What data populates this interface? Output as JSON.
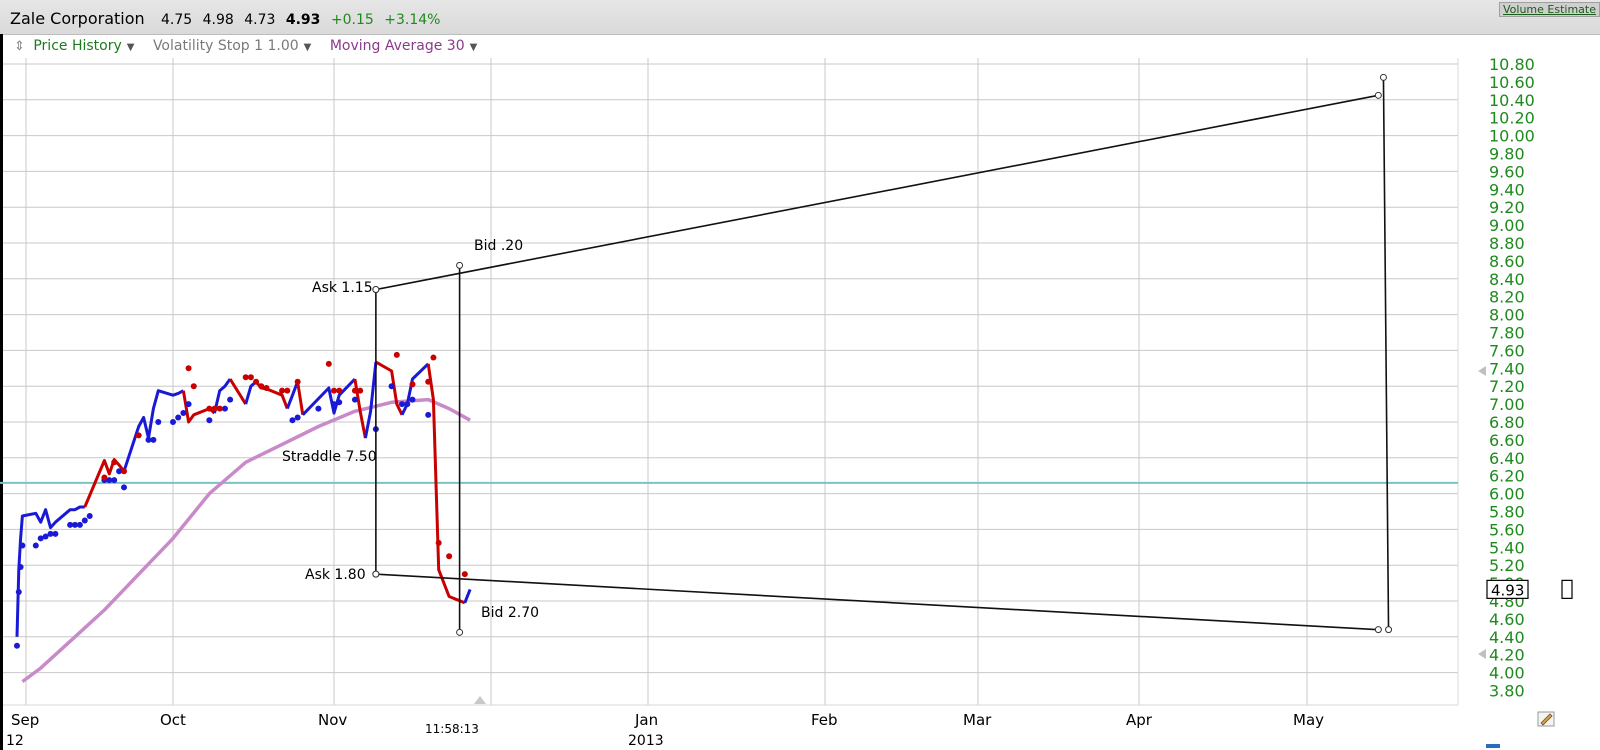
{
  "header": {
    "company": "Zale Corporation",
    "open": "4.75",
    "high": "4.98",
    "low": "4.73",
    "last": "4.93",
    "change": "+0.15",
    "change_pct": "+3.14%",
    "volume_link": "Volume Estimate"
  },
  "legend": {
    "drag_icon": "drag-handle-icon",
    "items": [
      {
        "label": "Price History",
        "color": "#1e7a1e"
      },
      {
        "label": "Volatility Stop 1 1.00",
        "color": "#7a7a7a"
      },
      {
        "label": "Moving Average 30",
        "color": "#8a3a8a"
      }
    ]
  },
  "price_marker": "4.93",
  "crosshair_time": "11:58:13",
  "colors": {
    "up": "#1a1ad6",
    "down": "#c80000",
    "moving_average": "#c98ac9",
    "reference_line": "#7ac3c3",
    "price_axis": "#1e8a1e",
    "grid": "#c8c8c8"
  },
  "chart_data": {
    "type": "line",
    "x_axis": {
      "tick_labels": [
        "Sep",
        "Oct",
        "Nov",
        "Jan",
        "Feb",
        "Mar",
        "Apr",
        "May"
      ],
      "partial_labels": [
        "12",
        "2013"
      ]
    },
    "y_axis": {
      "ylim": [
        3.8,
        10.8
      ],
      "tick_labels": [
        "10.80",
        "10.60",
        "10.40",
        "10.20",
        "10.00",
        "9.80",
        "9.60",
        "9.40",
        "9.20",
        "9.00",
        "8.80",
        "8.60",
        "8.40",
        "8.20",
        "8.00",
        "7.80",
        "7.60",
        "7.40",
        "7.20",
        "7.00",
        "6.80",
        "6.60",
        "6.40",
        "6.20",
        "6.00",
        "5.80",
        "5.60",
        "5.40",
        "5.20",
        "5.00",
        "4.80",
        "4.60",
        "4.40",
        "4.20",
        "4.00",
        "3.80"
      ],
      "side": "right"
    },
    "grid": true,
    "reference_line": 6.12,
    "series": [
      {
        "name": "Price History",
        "segments": [
          {
            "trend": "up",
            "points": [
              [
                "Aug 27",
                4.4
              ],
              [
                "Aug 28",
                5.15
              ],
              [
                "Aug 29",
                5.5
              ],
              [
                "Aug 30",
                5.75
              ],
              [
                "Sep 3",
                5.78
              ],
              [
                "Sep 4",
                5.68
              ],
              [
                "Sep 5",
                5.82
              ],
              [
                "Sep 6",
                5.62
              ],
              [
                "Sep 7",
                5.68
              ],
              [
                "Sep 10",
                5.82
              ],
              [
                "Sep 11",
                5.82
              ],
              [
                "Sep 12",
                5.85
              ],
              [
                "Sep 13",
                5.85
              ]
            ]
          },
          {
            "trend": "down",
            "points": [
              [
                "Sep 13",
                5.85
              ],
              [
                "Sep 17",
                6.37
              ],
              [
                "Sep 18",
                6.22
              ],
              [
                "Sep 19",
                6.38
              ],
              [
                "Sep 20",
                6.32
              ],
              [
                "Sep 21",
                6.25
              ]
            ]
          },
          {
            "trend": "up",
            "points": [
              [
                "Sep 21",
                6.25
              ],
              [
                "Sep 24",
                6.75
              ],
              [
                "Sep 25",
                6.85
              ],
              [
                "Sep 26",
                6.62
              ],
              [
                "Sep 27",
                6.95
              ],
              [
                "Sep 28",
                7.15
              ],
              [
                "Oct 1",
                7.1
              ],
              [
                "Oct 2",
                7.12
              ],
              [
                "Oct 3",
                7.15
              ]
            ]
          },
          {
            "trend": "down",
            "points": [
              [
                "Oct 3",
                7.15
              ],
              [
                "Oct 4",
                6.8
              ],
              [
                "Oct 5",
                6.88
              ],
              [
                "Oct 8",
                6.95
              ],
              [
                "Oct 9",
                6.9
              ]
            ]
          },
          {
            "trend": "up",
            "points": [
              [
                "Oct 9",
                6.9
              ],
              [
                "Oct 10",
                7.15
              ],
              [
                "Oct 11",
                7.2
              ],
              [
                "Oct 12",
                7.28
              ]
            ]
          },
          {
            "trend": "down",
            "points": [
              [
                "Oct 12",
                7.28
              ],
              [
                "Oct 15",
                7.0
              ]
            ]
          },
          {
            "trend": "up",
            "points": [
              [
                "Oct 15",
                7.0
              ],
              [
                "Oct 16",
                7.2
              ],
              [
                "Oct 17",
                7.25
              ]
            ]
          },
          {
            "trend": "down",
            "points": [
              [
                "Oct 17",
                7.25
              ],
              [
                "Oct 18",
                7.18
              ],
              [
                "Oct 19",
                7.17
              ],
              [
                "Oct 22",
                7.1
              ],
              [
                "Oct 23",
                6.95
              ]
            ]
          },
          {
            "trend": "up",
            "points": [
              [
                "Oct 23",
                6.95
              ],
              [
                "Oct 24",
                7.1
              ],
              [
                "Oct 25",
                7.25
              ]
            ]
          },
          {
            "trend": "down",
            "points": [
              [
                "Oct 25",
                7.25
              ],
              [
                "Oct 26",
                6.88
              ]
            ]
          },
          {
            "trend": "up",
            "points": [
              [
                "Oct 26",
                6.88
              ],
              [
                "Oct 31",
                7.18
              ],
              [
                "Nov 1",
                6.9
              ],
              [
                "Nov 2",
                7.1
              ],
              [
                "Nov 5",
                7.28
              ]
            ]
          },
          {
            "trend": "down",
            "points": [
              [
                "Nov 5",
                7.28
              ],
              [
                "Nov 6",
                6.92
              ],
              [
                "Nov 7",
                6.62
              ]
            ]
          },
          {
            "trend": "up",
            "points": [
              [
                "Nov 7",
                6.62
              ],
              [
                "Nov 8",
                6.92
              ],
              [
                "Nov 9",
                7.47
              ]
            ]
          },
          {
            "trend": "down",
            "points": [
              [
                "Nov 9",
                7.47
              ],
              [
                "Nov 12",
                7.37
              ],
              [
                "Nov 13",
                7.0
              ],
              [
                "Nov 14",
                6.88
              ]
            ]
          },
          {
            "trend": "up",
            "points": [
              [
                "Nov 14",
                6.88
              ],
              [
                "Nov 15",
                7.0
              ],
              [
                "Nov 16",
                7.28
              ],
              [
                "Nov 19",
                7.45
              ]
            ]
          },
          {
            "trend": "down",
            "points": [
              [
                "Nov 19",
                7.45
              ],
              [
                "Nov 20",
                7.05
              ],
              [
                "Nov 21",
                5.15
              ],
              [
                "Nov 23",
                4.85
              ],
              [
                "Nov 26",
                4.78
              ]
            ]
          },
          {
            "trend": "up",
            "points": [
              [
                "Nov 26",
                4.78
              ],
              [
                "Nov 27",
                4.93
              ]
            ]
          }
        ]
      },
      {
        "name": "Volatility Stop 1 1.00",
        "up_dots": [
          [
            "Aug 27",
            4.3
          ],
          [
            "Aug 28",
            4.9
          ],
          [
            "Aug 29",
            5.18
          ],
          [
            "Aug 30",
            5.42
          ],
          [
            "Sep 3",
            5.42
          ],
          [
            "Sep 4",
            5.5
          ],
          [
            "Sep 5",
            5.52
          ],
          [
            "Sep 6",
            5.55
          ],
          [
            "Sep 7",
            5.55
          ],
          [
            "Sep 10",
            5.65
          ],
          [
            "Sep 11",
            5.65
          ],
          [
            "Sep 12",
            5.65
          ],
          [
            "Sep 13",
            5.7
          ],
          [
            "Sep 14",
            5.75
          ],
          [
            "Sep 17",
            6.15
          ],
          [
            "Sep 18",
            6.15
          ],
          [
            "Sep 19",
            6.15
          ],
          [
            "Sep 20",
            6.25
          ],
          [
            "Sep 21",
            6.07
          ],
          [
            "Sep 26",
            6.6
          ],
          [
            "Sep 27",
            6.6
          ],
          [
            "Sep 28",
            6.8
          ],
          [
            "Oct 1",
            6.8
          ],
          [
            "Oct 2",
            6.85
          ],
          [
            "Oct 3",
            6.9
          ],
          [
            "Oct 4",
            7.0
          ],
          [
            "Oct 8",
            6.82
          ],
          [
            "Oct 11",
            6.95
          ],
          [
            "Oct 12",
            7.05
          ],
          [
            "Oct 24",
            6.82
          ],
          [
            "Oct 25",
            6.85
          ],
          [
            "Oct 29",
            6.95
          ],
          [
            "Nov 1",
            7.0
          ],
          [
            "Nov 2",
            7.02
          ],
          [
            "Nov 5",
            7.05
          ],
          [
            "Nov 9",
            6.72
          ],
          [
            "Nov 12",
            7.2
          ],
          [
            "Nov 14",
            7.0
          ],
          [
            "Nov 15",
            7.0
          ],
          [
            "Nov 16",
            7.05
          ],
          [
            "Nov 19",
            6.88
          ]
        ],
        "down_dots": [
          [
            "Sep 17",
            6.18
          ],
          [
            "Sep 19",
            6.35
          ],
          [
            "Sep 21",
            6.25
          ],
          [
            "Sep 24",
            6.65
          ],
          [
            "Oct 4",
            7.4
          ],
          [
            "Oct 5",
            7.2
          ],
          [
            "Oct 8",
            6.95
          ],
          [
            "Oct 9",
            6.95
          ],
          [
            "Oct 10",
            6.95
          ],
          [
            "Oct 15",
            7.3
          ],
          [
            "Oct 16",
            7.3
          ],
          [
            "Oct 17",
            7.25
          ],
          [
            "Oct 18",
            7.2
          ],
          [
            "Oct 19",
            7.18
          ],
          [
            "Oct 22",
            7.15
          ],
          [
            "Oct 23",
            7.15
          ],
          [
            "Oct 25",
            7.25
          ],
          [
            "Oct 31",
            7.45
          ],
          [
            "Nov 1",
            7.15
          ],
          [
            "Nov 2",
            7.15
          ],
          [
            "Nov 5",
            7.15
          ],
          [
            "Nov 6",
            7.15
          ],
          [
            "Nov 13",
            7.55
          ],
          [
            "Nov 16",
            7.22
          ],
          [
            "Nov 19",
            7.25
          ],
          [
            "Nov 20",
            7.52
          ],
          [
            "Nov 21",
            5.45
          ],
          [
            "Nov 23",
            5.3
          ],
          [
            "Nov 26",
            5.1
          ]
        ]
      },
      {
        "name": "Moving Average 30",
        "points": [
          [
            "Aug 30",
            3.9
          ],
          [
            "Sep 4",
            4.05
          ],
          [
            "Sep 10",
            4.35
          ],
          [
            "Sep 17",
            4.7
          ],
          [
            "Sep 24",
            5.1
          ],
          [
            "Oct 1",
            5.5
          ],
          [
            "Oct 8",
            6.0
          ],
          [
            "Oct 15",
            6.35
          ],
          [
            "Oct 22",
            6.55
          ],
          [
            "Oct 29",
            6.75
          ],
          [
            "Nov 5",
            6.92
          ],
          [
            "Nov 12",
            7.02
          ],
          [
            "Nov 19",
            7.05
          ],
          [
            "Nov 23",
            6.95
          ],
          [
            "Nov 27",
            6.82
          ]
        ]
      }
    ],
    "annotations": {
      "lines": [
        {
          "x1": "Nov 9",
          "y1": 8.28,
          "x2": "May 15",
          "y2": 10.45
        },
        {
          "x1": "Nov 9",
          "y1": 5.1,
          "x2": "May 15",
          "y2": 4.48
        },
        {
          "x1": "Nov 9",
          "y1": 8.28,
          "x2": "Nov 9",
          "y2": 5.1
        },
        {
          "x1": "Nov 25",
          "y1": 8.55,
          "x2": "Nov 25",
          "y2": 4.45
        },
        {
          "x1": "May 16",
          "y1": 10.65,
          "x2": "May 17",
          "y2": 4.48
        }
      ],
      "labels": [
        "Ask 1.15",
        "Bid .20",
        "Straddle 7.50",
        "Ask 1.80",
        "Bid 2.70"
      ]
    }
  }
}
